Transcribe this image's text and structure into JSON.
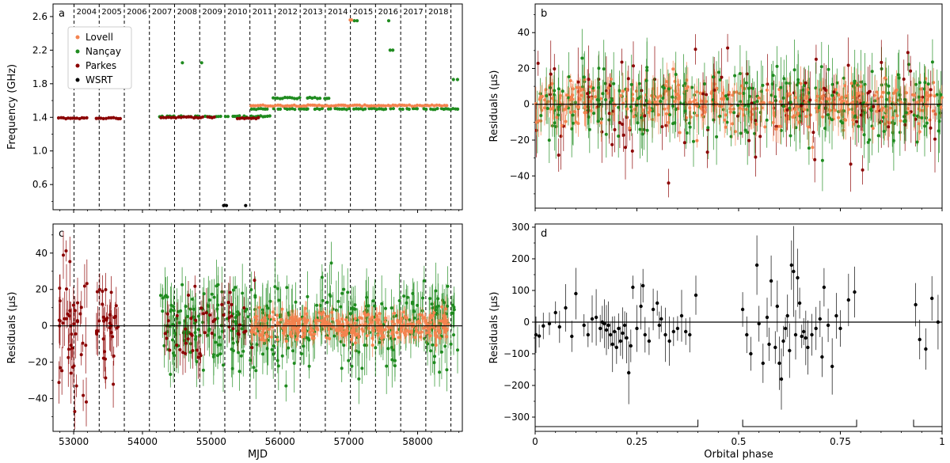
{
  "colors": {
    "Lovell": "#f4834f",
    "Nancay": "#1f8b1f",
    "Parkes": "#8b0000",
    "WSRT": "#000000",
    "black": "#000000"
  },
  "chart_data": [
    {
      "panel": "a",
      "type": "scatter",
      "xlabel": "",
      "ylabel": "Frequency (GHz)",
      "xlim": [
        52700,
        58650
      ],
      "ylim": [
        0.3,
        2.75
      ],
      "yticks": [
        "0.6",
        "1.0",
        "1.4",
        "1.8",
        "2.2",
        "2.6"
      ],
      "year_lines_mjd": [
        53005,
        53371,
        53736,
        54101,
        54466,
        54832,
        55197,
        55562,
        55927,
        56293,
        56658,
        57023,
        57388,
        57754,
        58119,
        58484
      ],
      "year_labels": [
        "2004",
        "2005",
        "2006",
        "2007",
        "2008",
        "2009",
        "2010",
        "2011",
        "2012",
        "2013",
        "2014",
        "2015",
        "2016",
        "2017",
        "2018"
      ],
      "legend": {
        "placement": "top-left",
        "entries": [
          "Lovell",
          "Nançay",
          "Parkes",
          "WSRT"
        ]
      },
      "series": [
        {
          "name": "Parkes",
          "segments": [
            [
              52780,
              53200,
              1.39
            ],
            [
              53330,
              53700,
              1.39
            ],
            [
              54270,
              54900,
              1.4
            ],
            [
              54950,
              55050,
              1.4
            ],
            [
              55380,
              55720,
              1.39
            ]
          ]
        },
        {
          "name": "Nançay",
          "segments": [
            [
              54250,
              55900,
              1.41
            ],
            [
              55550,
              56400,
              1.5
            ],
            [
              55900,
              56300,
              1.63
            ],
            [
              56400,
              58600,
              1.5
            ],
            [
              56400,
              56750,
              1.63
            ]
          ],
          "points": [
            [
              54580,
              2.05
            ],
            [
              54860,
              2.05
            ],
            [
              57080,
              2.55
            ],
            [
              57120,
              2.55
            ],
            [
              57580,
              2.55
            ],
            [
              57600,
              2.2
            ],
            [
              57640,
              2.2
            ],
            [
              58520,
              1.85
            ],
            [
              58580,
              1.85
            ]
          ]
        },
        {
          "name": "Lovell",
          "segments": [
            [
              55580,
              58450,
              1.54
            ]
          ],
          "points": [
            [
              57020,
              2.56
            ],
            [
              57040,
              2.56
            ]
          ]
        },
        {
          "name": "WSRT",
          "points": [
            [
              55180,
              0.35
            ],
            [
              55220,
              0.35
            ],
            [
              55500,
              0.35
            ]
          ]
        }
      ]
    },
    {
      "panel": "b",
      "type": "scatter",
      "xlabel": "",
      "ylabel": "Residuals (μs)",
      "xlim": [
        0,
        1
      ],
      "ylim": [
        -58,
        56
      ],
      "yticks": [
        "−40",
        "−20",
        "0",
        "20",
        "40"
      ],
      "note": "residuals vs orbital phase, all observatories, scatter about 0 with sigma ≈ 10 μs, error bars up to ±25 μs"
    },
    {
      "panel": "c",
      "type": "scatter",
      "xlabel": "MJD",
      "ylabel": "Residuals (μs)",
      "xlim": [
        52700,
        58650
      ],
      "ylim": [
        -58,
        56
      ],
      "xticks": [
        "53000",
        "54000",
        "55000",
        "56000",
        "57000",
        "58000"
      ],
      "yticks": [
        "−40",
        "−20",
        "0",
        "20",
        "40"
      ],
      "note": "residuals vs MJD, Parkes 52780–53500 scatter ~20 μs, Nançay 54250–58600 scatter ~12 μs, Lovell 55580–58450 scatter ~5 μs"
    },
    {
      "panel": "d",
      "type": "scatter",
      "xlabel": "Orbital phase",
      "ylabel": "Residuals (μs)",
      "xlim": [
        0,
        1
      ],
      "ylim": [
        -345,
        310
      ],
      "xticks": [
        "0",
        "0.25",
        "0.5",
        "0.75",
        "1"
      ],
      "yticks": [
        "−300",
        "−200",
        "−100",
        "0",
        "100",
        "200",
        "300"
      ],
      "phase_brackets": [
        [
          0.0,
          0.4
        ],
        [
          0.51,
          0.79
        ],
        [
          0.93,
          1.0
        ]
      ],
      "points": [
        [
          0.002,
          -40
        ],
        [
          0.01,
          -44
        ],
        [
          0.02,
          -12
        ],
        [
          0.035,
          -5
        ],
        [
          0.05,
          30
        ],
        [
          0.06,
          -15
        ],
        [
          0.075,
          45
        ],
        [
          0.09,
          -45
        ],
        [
          0.1,
          90
        ],
        [
          0.12,
          -10
        ],
        [
          0.13,
          -40
        ],
        [
          0.14,
          10
        ],
        [
          0.15,
          15
        ],
        [
          0.16,
          -20
        ],
        [
          0.165,
          0
        ],
        [
          0.17,
          -5
        ],
        [
          0.175,
          -25
        ],
        [
          0.18,
          -10
        ],
        [
          0.185,
          -40
        ],
        [
          0.19,
          -70
        ],
        [
          0.195,
          -30
        ],
        [
          0.2,
          -80
        ],
        [
          0.205,
          -20
        ],
        [
          0.21,
          -60
        ],
        [
          0.215,
          -35
        ],
        [
          0.22,
          -10
        ],
        [
          0.225,
          -50
        ],
        [
          0.23,
          -160
        ],
        [
          0.235,
          -75
        ],
        [
          0.24,
          110
        ],
        [
          0.25,
          -20
        ],
        [
          0.26,
          50
        ],
        [
          0.265,
          115
        ],
        [
          0.27,
          -40
        ],
        [
          0.28,
          -60
        ],
        [
          0.29,
          40
        ],
        [
          0.3,
          60
        ],
        [
          0.305,
          -10
        ],
        [
          0.31,
          10
        ],
        [
          0.32,
          -40
        ],
        [
          0.33,
          -60
        ],
        [
          0.34,
          -30
        ],
        [
          0.35,
          -20
        ],
        [
          0.36,
          20
        ],
        [
          0.37,
          -30
        ],
        [
          0.38,
          -40
        ],
        [
          0.395,
          85
        ],
        [
          0.51,
          40
        ],
        [
          0.52,
          -40
        ],
        [
          0.53,
          -100
        ],
        [
          0.545,
          180
        ],
        [
          0.55,
          -5
        ],
        [
          0.56,
          -130
        ],
        [
          0.57,
          15
        ],
        [
          0.575,
          -70
        ],
        [
          0.58,
          130
        ],
        [
          0.59,
          -80
        ],
        [
          0.595,
          50
        ],
        [
          0.6,
          -130
        ],
        [
          0.605,
          -180
        ],
        [
          0.61,
          -60
        ],
        [
          0.615,
          -20
        ],
        [
          0.62,
          20
        ],
        [
          0.625,
          -90
        ],
        [
          0.63,
          180
        ],
        [
          0.635,
          160
        ],
        [
          0.64,
          -40
        ],
        [
          0.645,
          140
        ],
        [
          0.65,
          60
        ],
        [
          0.655,
          -45
        ],
        [
          0.66,
          -30
        ],
        [
          0.665,
          -50
        ],
        [
          0.67,
          -80
        ],
        [
          0.68,
          -40
        ],
        [
          0.69,
          -20
        ],
        [
          0.7,
          10
        ],
        [
          0.705,
          -110
        ],
        [
          0.71,
          110
        ],
        [
          0.72,
          -10
        ],
        [
          0.73,
          -140
        ],
        [
          0.74,
          20
        ],
        [
          0.75,
          -20
        ],
        [
          0.77,
          70
        ],
        [
          0.785,
          95
        ],
        [
          0.935,
          55
        ],
        [
          0.945,
          -55
        ],
        [
          0.96,
          -85
        ],
        [
          0.975,
          75
        ],
        [
          0.99,
          0
        ]
      ]
    }
  ]
}
